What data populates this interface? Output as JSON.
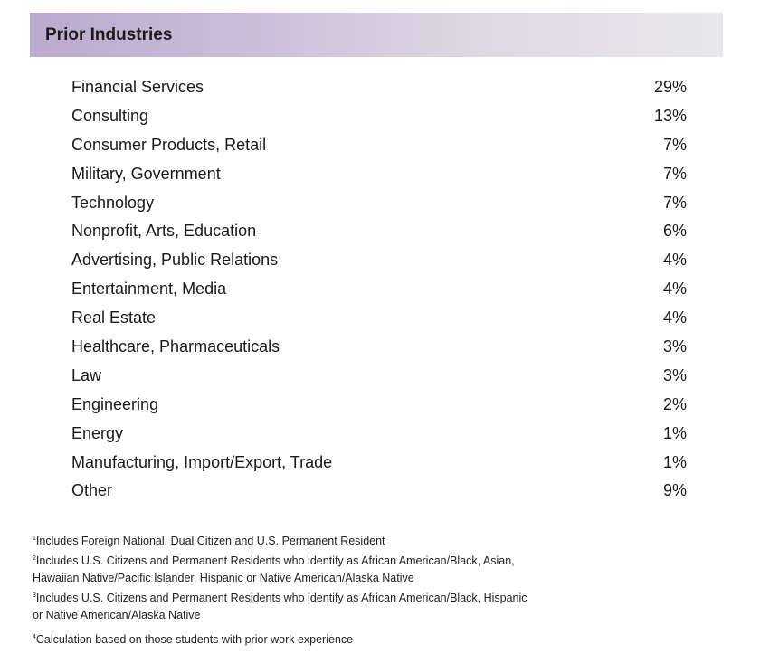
{
  "header": {
    "title": "Prior Industries"
  },
  "industries": [
    {
      "label": "Financial Services",
      "value": "29%"
    },
    {
      "label": "Consulting",
      "value": "13%"
    },
    {
      "label": "Consumer Products, Retail",
      "value": "7%"
    },
    {
      "label": "Military, Government",
      "value": "7%"
    },
    {
      "label": "Technology",
      "value": "7%"
    },
    {
      "label": "Nonprofit, Arts, Education",
      "value": "6%"
    },
    {
      "label": "Advertising, Public Relations",
      "value": "4%"
    },
    {
      "label": "Entertainment, Media",
      "value": "4%"
    },
    {
      "label": "Real Estate",
      "value": "4%"
    },
    {
      "label": "Healthcare, Pharmaceuticals",
      "value": "3%"
    },
    {
      "label": "Law",
      "value": "3%"
    },
    {
      "label": "Engineering",
      "value": "2%"
    },
    {
      "label": "Energy",
      "value": "1%"
    },
    {
      "label": "Manufacturing, Import/Export, Trade",
      "value": "1%"
    },
    {
      "label": "Other",
      "value": "9%"
    }
  ],
  "footnotes": [
    {
      "mark": "1",
      "lines": [
        "Includes Foreign National, Dual Citizen and U.S. Permanent Resident"
      ]
    },
    {
      "mark": "2",
      "lines": [
        "Includes U.S. Citizens and Permanent Residents who identify as African American/Black, Asian,",
        "Hawaiian Native/Pacific Islander, Hispanic or Native American/Alaska Native"
      ]
    },
    {
      "mark": "3",
      "lines": [
        "Includes U.S. Citizens and Permanent Residents who identify as African American/Black, Hispanic",
        "or Native American/Alaska Native"
      ]
    },
    {
      "mark": "4",
      "lines": [
        "Calculation based on those students with prior work experience"
      ]
    }
  ]
}
